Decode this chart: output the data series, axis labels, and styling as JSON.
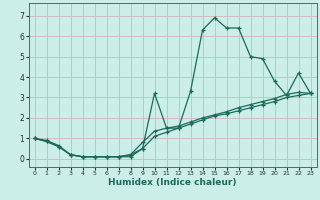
{
  "xlabel": "Humidex (Indice chaleur)",
  "bg_color": "#cceee8",
  "grid_color": "#d0b8b8",
  "line_color": "#1a6b5a",
  "xlim": [
    -0.5,
    23.5
  ],
  "ylim": [
    -0.4,
    7.6
  ],
  "xticks": [
    0,
    1,
    2,
    3,
    4,
    5,
    6,
    7,
    8,
    9,
    10,
    11,
    12,
    13,
    14,
    15,
    16,
    17,
    18,
    19,
    20,
    21,
    22,
    23
  ],
  "yticks": [
    0,
    1,
    2,
    3,
    4,
    5,
    6,
    7
  ],
  "series": [
    [
      1.0,
      0.9,
      0.65,
      0.2,
      0.1,
      0.1,
      0.1,
      0.1,
      0.1,
      0.5,
      3.2,
      1.5,
      1.5,
      3.3,
      6.3,
      6.9,
      6.4,
      6.4,
      5.0,
      4.9,
      3.8,
      3.1,
      4.2,
      3.2
    ],
    [
      1.0,
      0.85,
      0.6,
      0.2,
      0.1,
      0.1,
      0.1,
      0.1,
      0.2,
      0.5,
      1.1,
      1.3,
      1.5,
      1.7,
      1.9,
      2.1,
      2.2,
      2.35,
      2.5,
      2.65,
      2.8,
      3.0,
      3.1,
      3.2
    ],
    [
      1.0,
      0.85,
      0.6,
      0.2,
      0.1,
      0.1,
      0.1,
      0.1,
      0.2,
      0.8,
      1.35,
      1.5,
      1.6,
      1.8,
      2.0,
      2.15,
      2.3,
      2.5,
      2.65,
      2.8,
      2.95,
      3.15,
      3.25,
      3.2
    ]
  ]
}
